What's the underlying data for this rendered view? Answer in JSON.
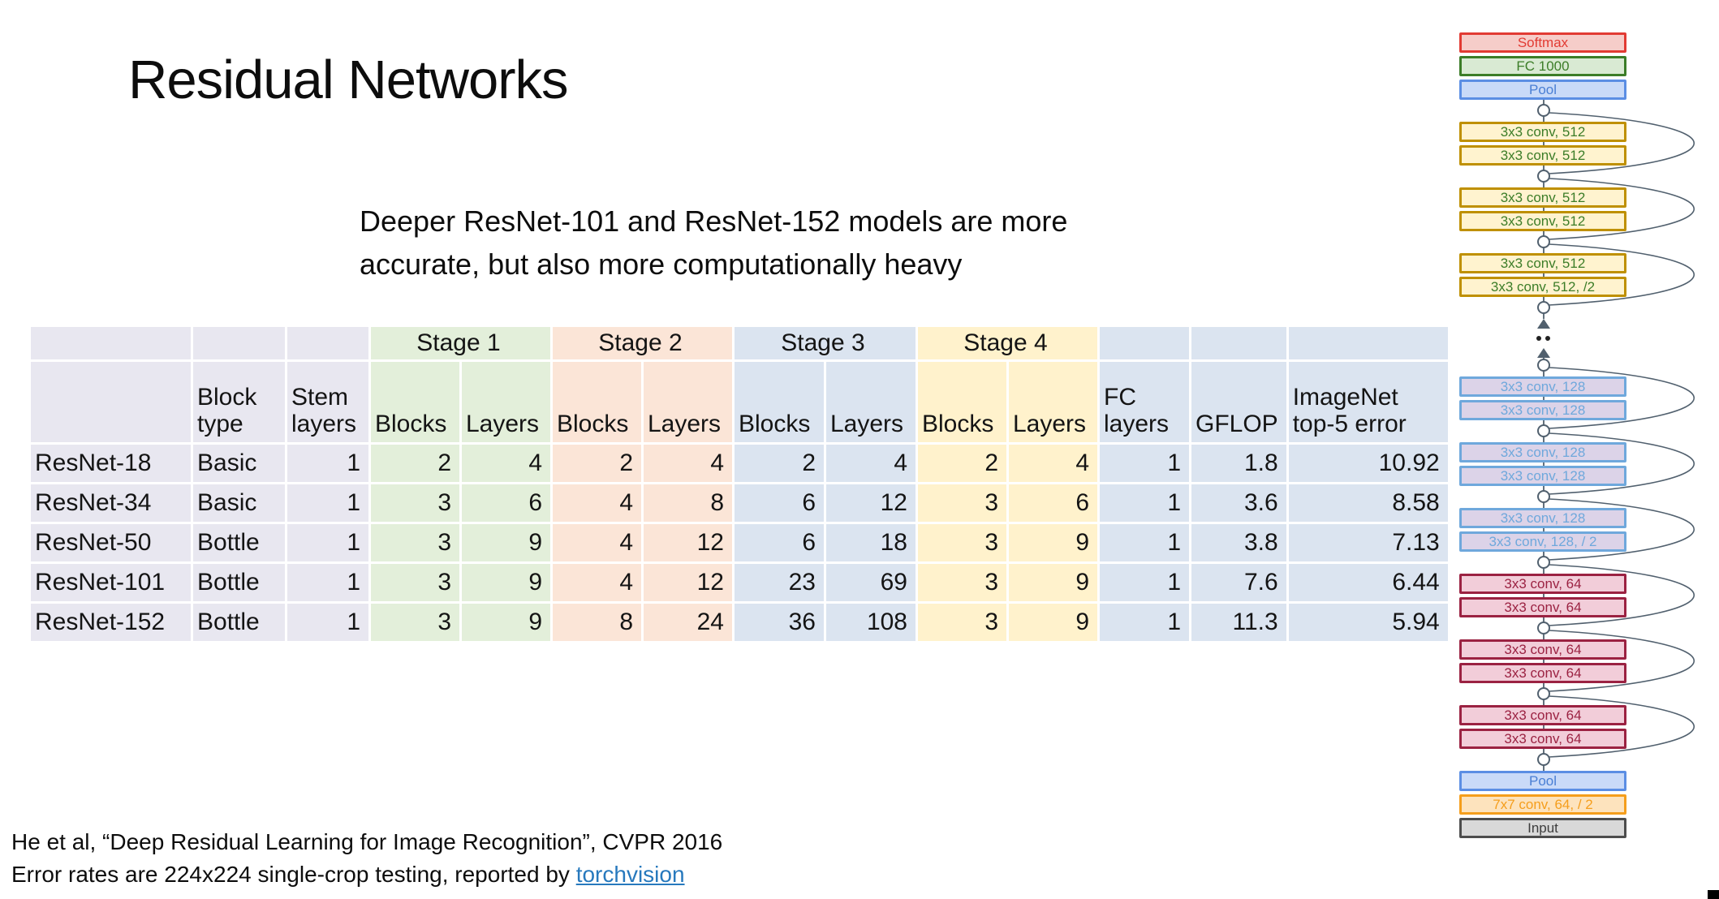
{
  "slide": {
    "title": "Residual Networks",
    "subtitle_line1": "Deeper ResNet-101 and ResNet-152 models are more",
    "subtitle_line2": "accurate, but also more computationally heavy",
    "citation_line1": "He et al, “Deep Residual Learning for Image Recognition”, CVPR 2016",
    "citation_line2_prefix": "Error rates are 224x224 single-crop testing, reported by ",
    "citation_link_label": "torchvision"
  },
  "table": {
    "stage_headers": [
      "Stage 1",
      "Stage 2",
      "Stage 3",
      "Stage 4"
    ],
    "column_headers": [
      "",
      "Block\ntype",
      "Stem\nlayers",
      "Blocks",
      "Layers",
      "Blocks",
      "Layers",
      "Blocks",
      "Layers",
      "Blocks",
      "Layers",
      "FC\nlayers",
      "GFLOP",
      "ImageNet\ntop-5 error"
    ],
    "rows": [
      [
        "ResNet-18",
        "Basic",
        "1",
        "2",
        "4",
        "2",
        "4",
        "2",
        "4",
        "2",
        "4",
        "1",
        "1.8",
        "10.92"
      ],
      [
        "ResNet-34",
        "Basic",
        "1",
        "3",
        "6",
        "4",
        "8",
        "6",
        "12",
        "3",
        "6",
        "1",
        "3.6",
        "8.58"
      ],
      [
        "ResNet-50",
        "Bottle",
        "1",
        "3",
        "9",
        "4",
        "12",
        "6",
        "18",
        "3",
        "9",
        "1",
        "3.8",
        "7.13"
      ],
      [
        "ResNet-101",
        "Bottle",
        "1",
        "3",
        "9",
        "4",
        "12",
        "23",
        "69",
        "3",
        "9",
        "1",
        "7.6",
        "6.44"
      ],
      [
        "ResNet-152",
        "Bottle",
        "1",
        "3",
        "9",
        "8",
        "24",
        "36",
        "108",
        "3",
        "9",
        "1",
        "11.3",
        "5.94"
      ]
    ],
    "colors": {
      "lav": "#e8e7f0",
      "grn": "#e3efda",
      "pch": "#fbe5d7",
      "blu": "#dbe4f0",
      "ylw": "#fff2cc"
    }
  },
  "diagram": {
    "connector_color": "#51606e",
    "styles": {
      "softmax": {
        "border": "#e23b33",
        "fill": "#f6cdc9",
        "text": "#e23b33"
      },
      "fc": {
        "border": "#3c7d28",
        "fill": "#d9ead3",
        "text": "#3c7d28"
      },
      "pool": {
        "border": "#5b8ee4",
        "fill": "#c9daf8",
        "text": "#4a7fd4"
      },
      "conv512": {
        "border": "#bf9000",
        "fill": "#fff3cf",
        "text": "#3c7d28"
      },
      "conv128": {
        "border": "#6fa8dc",
        "fill": "#dcd3e8",
        "text": "#6fa8dc"
      },
      "conv64": {
        "border": "#9b2242",
        "fill": "#f2cdd9",
        "text": "#9b2242"
      },
      "conv7": {
        "border": "#f59e1c",
        "fill": "#fde3bd",
        "text": "#f59e1c"
      },
      "input": {
        "border": "#4d4d4d",
        "fill": "#d9d9d9",
        "text": "#3d3d3d"
      }
    },
    "nodes": [
      {
        "kind": "box",
        "style": "softmax",
        "label": "Softmax"
      },
      {
        "kind": "box",
        "style": "fc",
        "label": "FC 1000"
      },
      {
        "kind": "box",
        "style": "pool",
        "label": "Pool"
      },
      {
        "kind": "dot"
      },
      {
        "kind": "box",
        "style": "conv512",
        "label": "3x3 conv, 512"
      },
      {
        "kind": "box",
        "style": "conv512",
        "label": "3x3 conv, 512"
      },
      {
        "kind": "dot"
      },
      {
        "kind": "box",
        "style": "conv512",
        "label": "3x3 conv, 512"
      },
      {
        "kind": "box",
        "style": "conv512",
        "label": "3x3 conv, 512"
      },
      {
        "kind": "dot"
      },
      {
        "kind": "box",
        "style": "conv512",
        "label": "3x3 conv, 512"
      },
      {
        "kind": "box",
        "style": "conv512",
        "label": "3x3 conv, 512, /2"
      },
      {
        "kind": "dot"
      },
      {
        "kind": "gap"
      },
      {
        "kind": "dot"
      },
      {
        "kind": "box",
        "style": "conv128",
        "label": "3x3 conv, 128"
      },
      {
        "kind": "box",
        "style": "conv128",
        "label": "3x3 conv, 128"
      },
      {
        "kind": "dot"
      },
      {
        "kind": "box",
        "style": "conv128",
        "label": "3x3 conv, 128"
      },
      {
        "kind": "box",
        "style": "conv128",
        "label": "3x3 conv, 128"
      },
      {
        "kind": "dot"
      },
      {
        "kind": "box",
        "style": "conv128",
        "label": "3x3 conv, 128"
      },
      {
        "kind": "box",
        "style": "conv128",
        "label": "3x3 conv, 128, / 2"
      },
      {
        "kind": "dot"
      },
      {
        "kind": "box",
        "style": "conv64",
        "label": "3x3 conv, 64"
      },
      {
        "kind": "box",
        "style": "conv64",
        "label": "3x3 conv, 64"
      },
      {
        "kind": "dot"
      },
      {
        "kind": "box",
        "style": "conv64",
        "label": "3x3 conv, 64"
      },
      {
        "kind": "box",
        "style": "conv64",
        "label": "3x3 conv, 64"
      },
      {
        "kind": "dot"
      },
      {
        "kind": "box",
        "style": "conv64",
        "label": "3x3 conv, 64"
      },
      {
        "kind": "box",
        "style": "conv64",
        "label": "3x3 conv, 64"
      },
      {
        "kind": "dot"
      },
      {
        "kind": "box",
        "style": "pool",
        "label": "Pool"
      },
      {
        "kind": "box",
        "style": "conv7",
        "label": "7x7 conv, 64, / 2"
      },
      {
        "kind": "box",
        "style": "input",
        "label": "Input"
      }
    ]
  }
}
